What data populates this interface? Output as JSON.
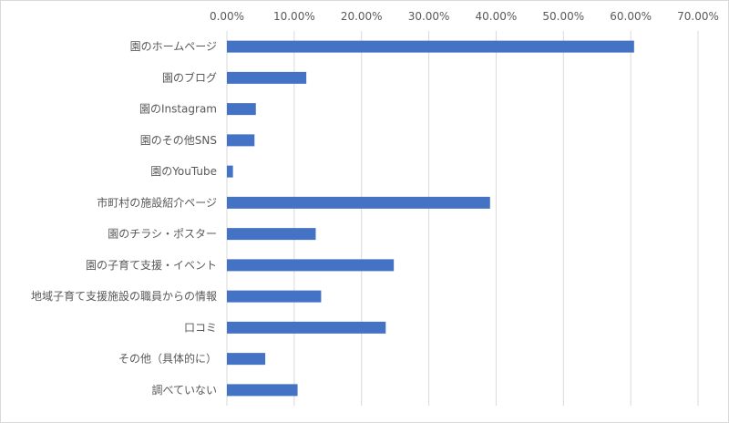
{
  "chart_data": {
    "type": "bar",
    "orientation": "horizontal",
    "title": "",
    "xlabel": "",
    "ylabel": "",
    "xlim": [
      0,
      0.7
    ],
    "tick_values": [
      0,
      0.1,
      0.2,
      0.3,
      0.4,
      0.5,
      0.6,
      0.7
    ],
    "tick_labels": [
      "0.00%",
      "10.00%",
      "20.00%",
      "30.00%",
      "40.00%",
      "50.00%",
      "60.00%",
      "70.00%"
    ],
    "axis_position": "top",
    "grid": true,
    "legend": "none",
    "bar_color": "#4472C4",
    "categories": [
      "園のホームページ",
      "園のブログ",
      "園のInstagram",
      "園のその他SNS",
      "園のYouTube",
      "市町村の施設紹介ページ",
      "園のチラシ・ポスター",
      "園の子育て支援・イベント",
      "地域子育て支援施設の職員からの情報",
      "口コミ",
      "その他（具体的に）",
      "調べていない"
    ],
    "values": [
      0.605,
      0.118,
      0.043,
      0.041,
      0.009,
      0.391,
      0.132,
      0.248,
      0.14,
      0.236,
      0.057,
      0.105
    ]
  }
}
